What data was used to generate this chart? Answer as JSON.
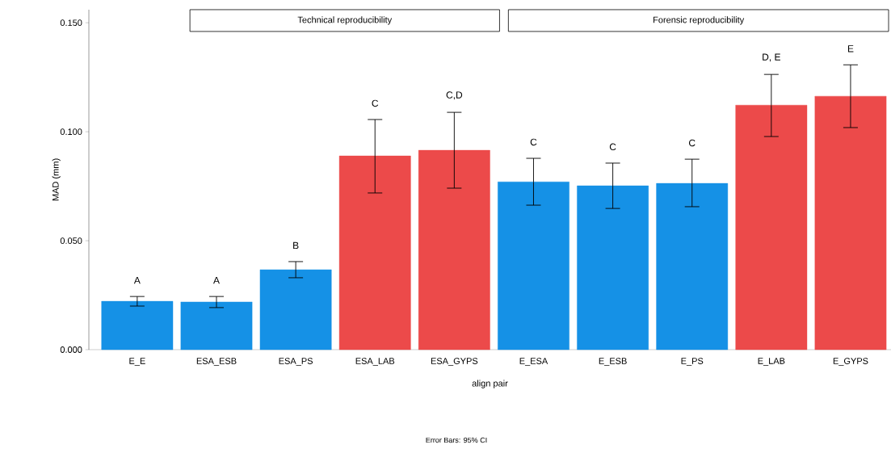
{
  "chart_data": {
    "type": "bar",
    "xlabel": "align pair",
    "ylabel": "MAD (mm)",
    "categories": [
      "E_E",
      "ESA_ESB",
      "ESA_PS",
      "ESA_LAB",
      "ESA_GYPS",
      "E_ESA",
      "E_ESB",
      "E_PS",
      "E_LAB",
      "E_GYPS"
    ],
    "values": [
      0.0222,
      0.0219,
      0.0367,
      0.0889,
      0.0915,
      0.077,
      0.0752,
      0.0763,
      0.1122,
      0.1163
    ],
    "errors": [
      [
        0.02,
        0.0244
      ],
      [
        0.0193,
        0.0244
      ],
      [
        0.033,
        0.0404
      ],
      [
        0.0719,
        0.1056
      ],
      [
        0.0741,
        0.1089
      ],
      [
        0.0663,
        0.0878
      ],
      [
        0.0648,
        0.0856
      ],
      [
        0.0656,
        0.0874
      ],
      [
        0.0978,
        0.1263
      ],
      [
        0.1019,
        0.1307
      ]
    ],
    "colors": [
      "#1591e6",
      "#1591e6",
      "#1591e6",
      "#ec4a4a",
      "#ec4a4a",
      "#1591e6",
      "#1591e6",
      "#1591e6",
      "#ec4a4a",
      "#ec4a4a"
    ],
    "ylim": [
      0,
      0.156
    ],
    "yticks": [
      {
        "value": 0,
        "label": "0.000"
      },
      {
        "value": 0.05,
        "label": "0.050"
      },
      {
        "value": 0.1,
        "label": "0.100"
      },
      {
        "value": 0.15,
        "label": "0.150"
      }
    ],
    "grid": false,
    "annotations": [
      "A",
      "A",
      "B",
      "C",
      "C,D",
      "C",
      "C",
      "C",
      "D, E",
      "E",
      "Technical reproducibility",
      "Forensic reproducibility",
      "Error Bars: 95% CI"
    ]
  }
}
